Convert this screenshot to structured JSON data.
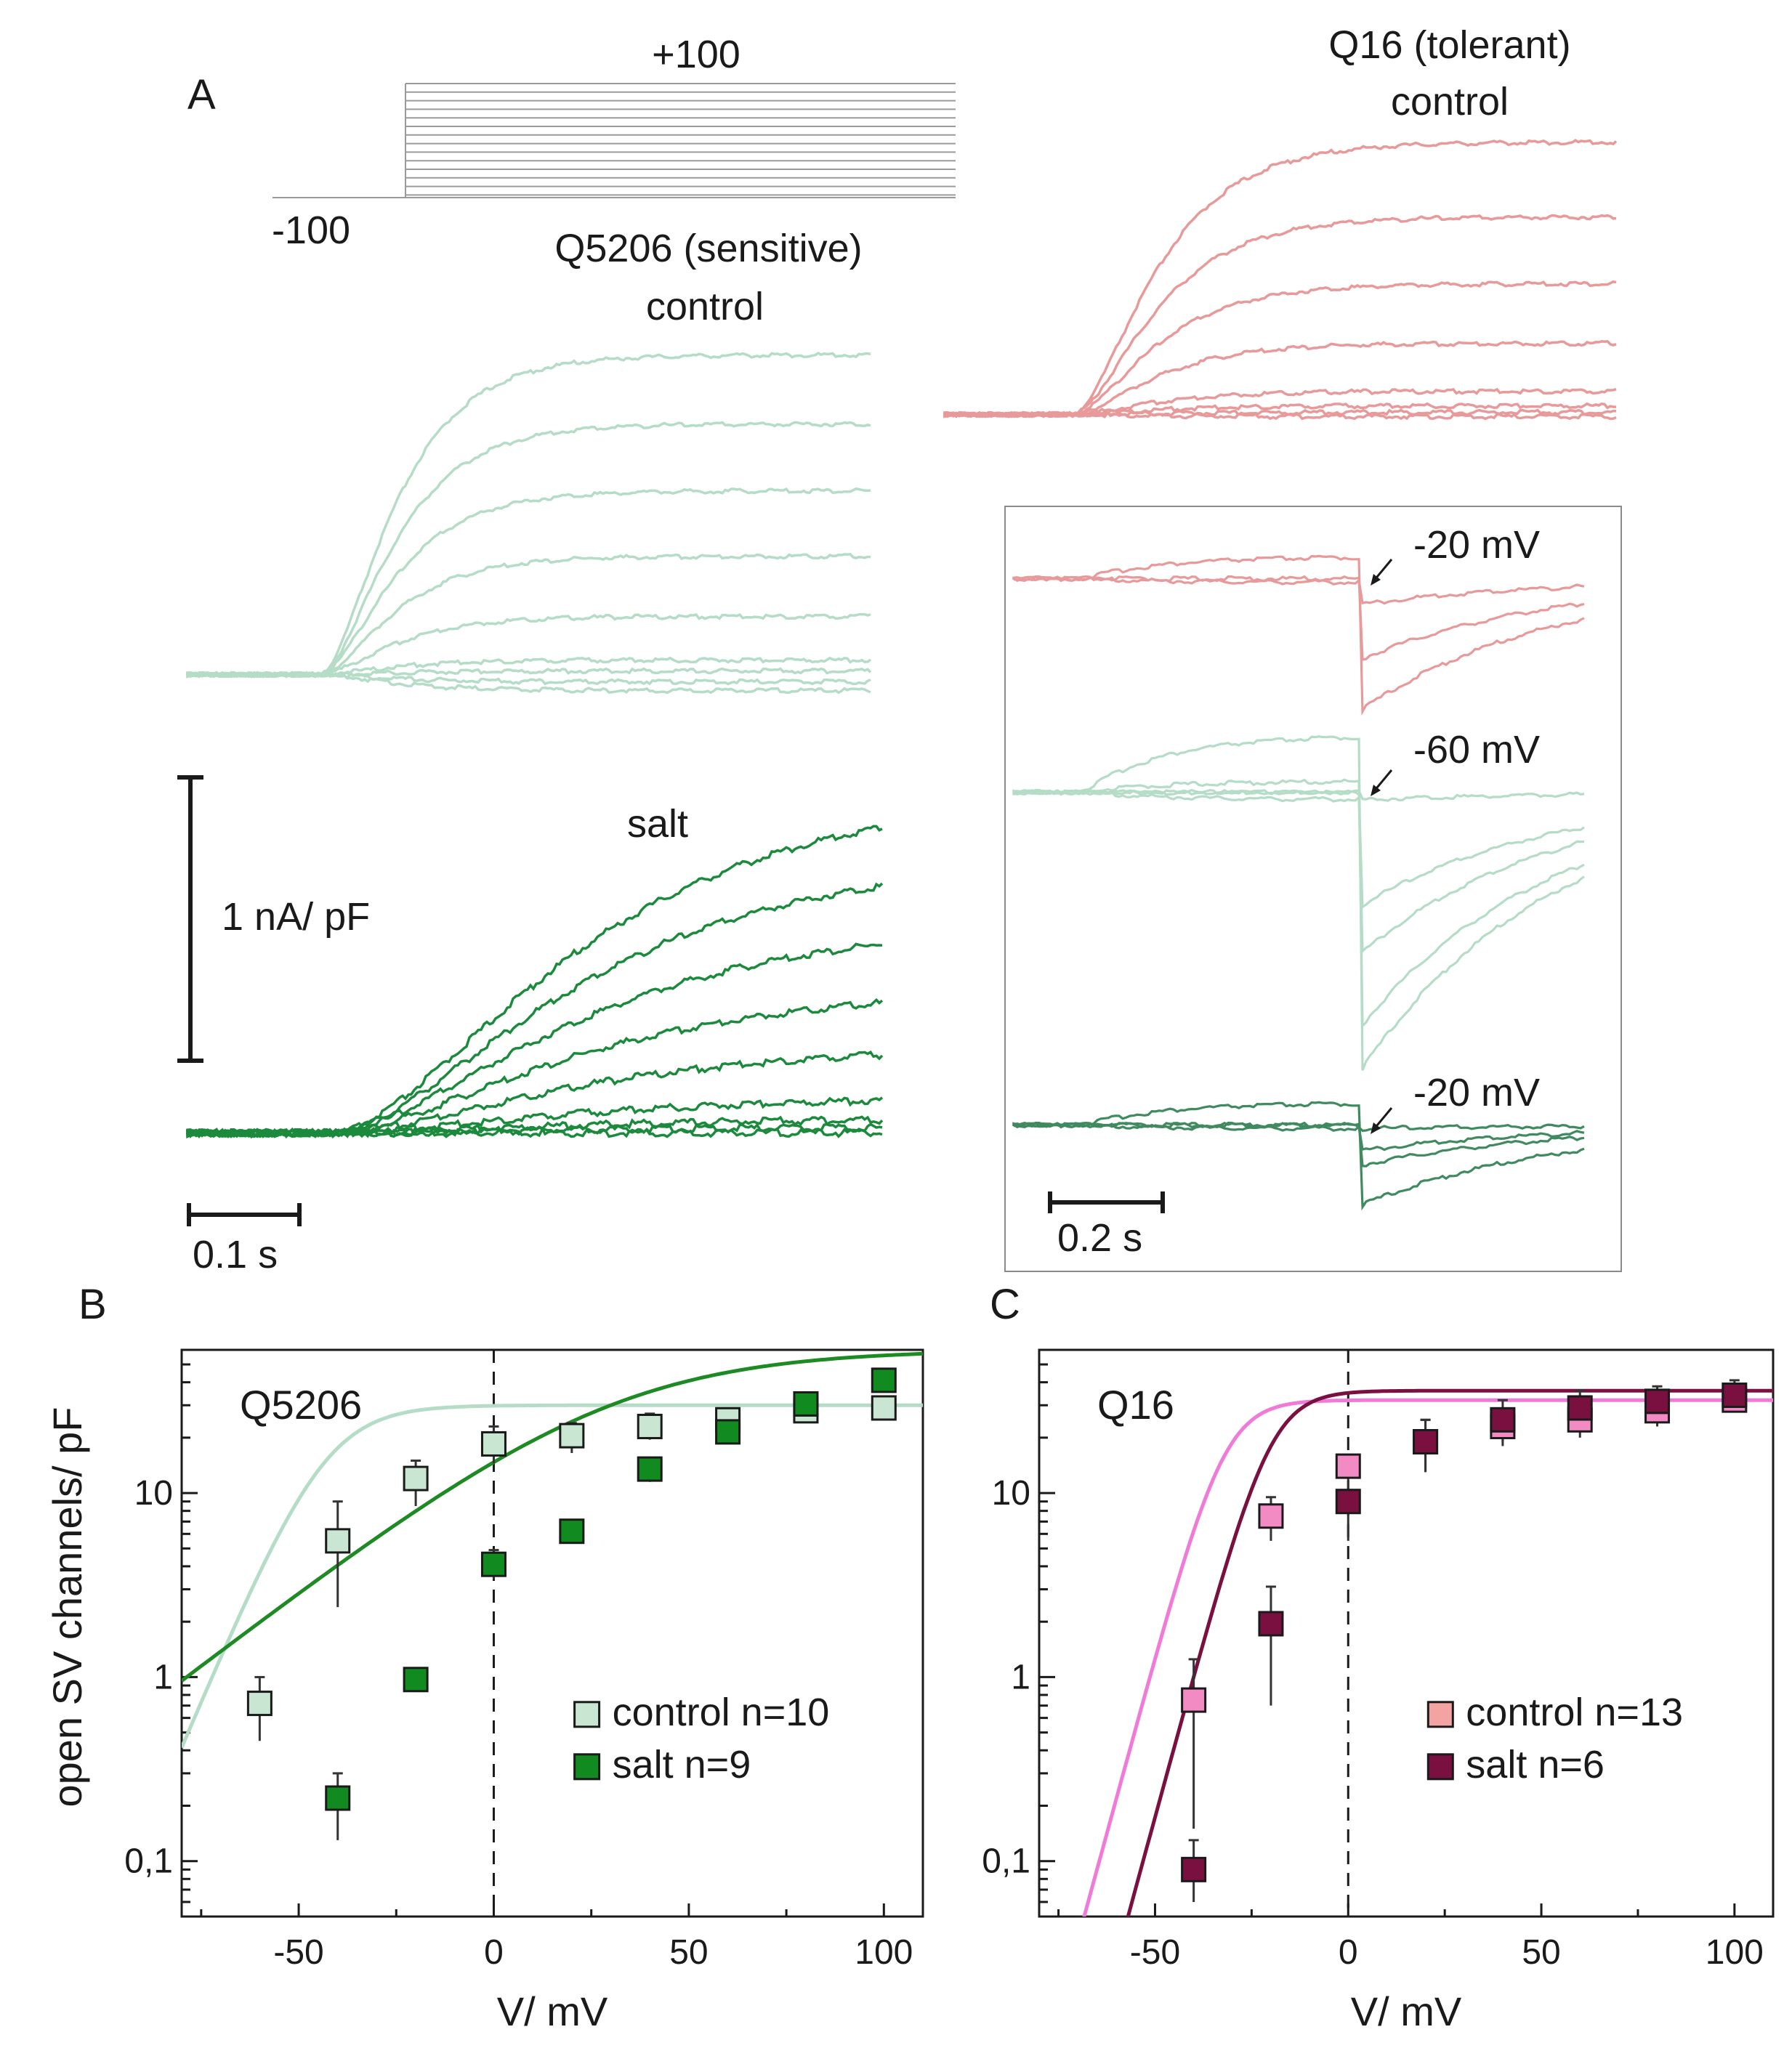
{
  "panel_a": {
    "letter": "A",
    "protocol": {
      "top_label": "+100",
      "bottom_label": "-100"
    },
    "sensitive": {
      "title": "Q5206 (sensitive)",
      "subtitle": "control",
      "salt_label": "salt",
      "color_control": "#b5dcc6",
      "color_salt": "#1c8a3d"
    },
    "tolerant": {
      "title": "Q16 (tolerant)",
      "subtitle": "control",
      "color": "#e8999a"
    },
    "scale_current": "1 nA/ pF",
    "scale_time": "0.1 s",
    "inset": {
      "scale_time": "0.2 s",
      "labels": [
        "-20 mV",
        "-60 mV",
        "-20 mV"
      ],
      "colors": [
        "#e8999a",
        "#b5dcc6",
        "#3f8a5e"
      ]
    }
  },
  "chart_data": [
    {
      "type": "scatter",
      "panel": "B",
      "title": "Q5206",
      "xlabel": "V/ mV",
      "ylabel": "open SV channels/ pF",
      "yscale": "log",
      "xlim": [
        -80,
        110
      ],
      "ylim": [
        0.05,
        60
      ],
      "x_ticks": [
        -50,
        0,
        50,
        100
      ],
      "y_ticks": [
        {
          "v": 0.1,
          "label": "0,1"
        },
        {
          "v": 1,
          "label": "1"
        },
        {
          "v": 10,
          "label": "10"
        }
      ],
      "legend_position": "lower-right",
      "series": [
        {
          "name": "control n=10",
          "marker_color": "#c8e6d2",
          "line_color": "#b5dcc6",
          "x": [
            -60,
            -40,
            -20,
            0,
            20,
            40,
            60,
            80,
            100
          ],
          "y": [
            0.72,
            5.5,
            12,
            18.5,
            20.5,
            23,
            25,
            28,
            29
          ],
          "err": [
            [
              0.45,
              1.0
            ],
            [
              2.4,
              9.0
            ],
            [
              8.5,
              15
            ],
            [
              14.5,
              23
            ],
            [
              16.5,
              24
            ],
            [
              19.5,
              27
            ],
            [
              22,
              28
            ],
            [
              24,
              32
            ],
            [
              26,
              33
            ]
          ],
          "fit": {
            "ymax": 30,
            "v_half": -43,
            "slope": 6.5,
            "log_scale": 0.75
          }
        },
        {
          "name": "salt n=9",
          "marker_color": "#118a1f",
          "line_color": "#1e8a24",
          "x": [
            -40,
            -20,
            0,
            20,
            40,
            60,
            80,
            100
          ],
          "y": [
            0.22,
            0.97,
            4.1,
            6.2,
            13.5,
            21.5,
            30.5,
            41
          ],
          "err": [
            [
              0.13,
              0.3
            ],
            [
              0.88,
              1.06
            ],
            [
              3.4,
              4.9
            ],
            [
              5.4,
              7.0
            ],
            [
              11.5,
              15.5
            ],
            [
              19,
              24
            ],
            [
              27,
              34
            ],
            [
              37,
              45
            ]
          ],
          "fit": {
            "ymax": 60,
            "v_half": 30,
            "slope": 24,
            "log_scale": 0.9
          }
        }
      ]
    },
    {
      "type": "scatter",
      "panel": "C",
      "title": "Q16",
      "xlabel": "V/ mV",
      "yscale": "log",
      "xlim": [
        -80,
        110
      ],
      "ylim": [
        0.05,
        60
      ],
      "x_ticks": [
        -50,
        0,
        50,
        100
      ],
      "y_ticks": [
        {
          "v": 0.1,
          "label": "0,1"
        },
        {
          "v": 1,
          "label": "1"
        },
        {
          "v": 10,
          "label": "10"
        }
      ],
      "legend_position": "lower-right",
      "series": [
        {
          "name": "control n=13",
          "marker_color": "#f28ac4",
          "legend_color": "#f4a3a3",
          "line_color": "#f07ad8",
          "x": [
            -40,
            -20,
            0,
            20,
            40,
            60,
            80,
            100
          ],
          "y": [
            0.75,
            7.5,
            14,
            19,
            23,
            25,
            28,
            32
          ],
          "err": [
            [
              0.15,
              1.25
            ],
            [
              5.5,
              9.5
            ],
            [
              12,
              16
            ],
            [
              13,
              25
            ],
            [
              18,
              28
            ],
            [
              20,
              30
            ],
            [
              23,
              33
            ],
            [
              28,
              38
            ]
          ],
          "fit": {
            "ymax": 32,
            "v_half": -32,
            "slope": 4.5,
            "log_scale": 0.8
          }
        },
        {
          "name": "salt n=6",
          "marker_color": "#7a1040",
          "line_color": "#7a1040",
          "x": [
            -40,
            -20,
            0,
            20,
            40,
            60,
            80,
            100
          ],
          "y": [
            0.09,
            1.95,
            9,
            19,
            25,
            29,
            31.5,
            34
          ],
          "err": [
            [
              0.06,
              0.13
            ],
            [
              0.7,
              3.1
            ],
            [
              5.5,
              13
            ],
            [
              13,
              25
            ],
            [
              19,
              32
            ],
            [
              22,
              36
            ],
            [
              25,
              38
            ],
            [
              28,
              41
            ]
          ],
          "fit": {
            "ymax": 36,
            "v_half": -20,
            "slope": 4.5,
            "log_scale": 0.8
          }
        }
      ]
    }
  ]
}
